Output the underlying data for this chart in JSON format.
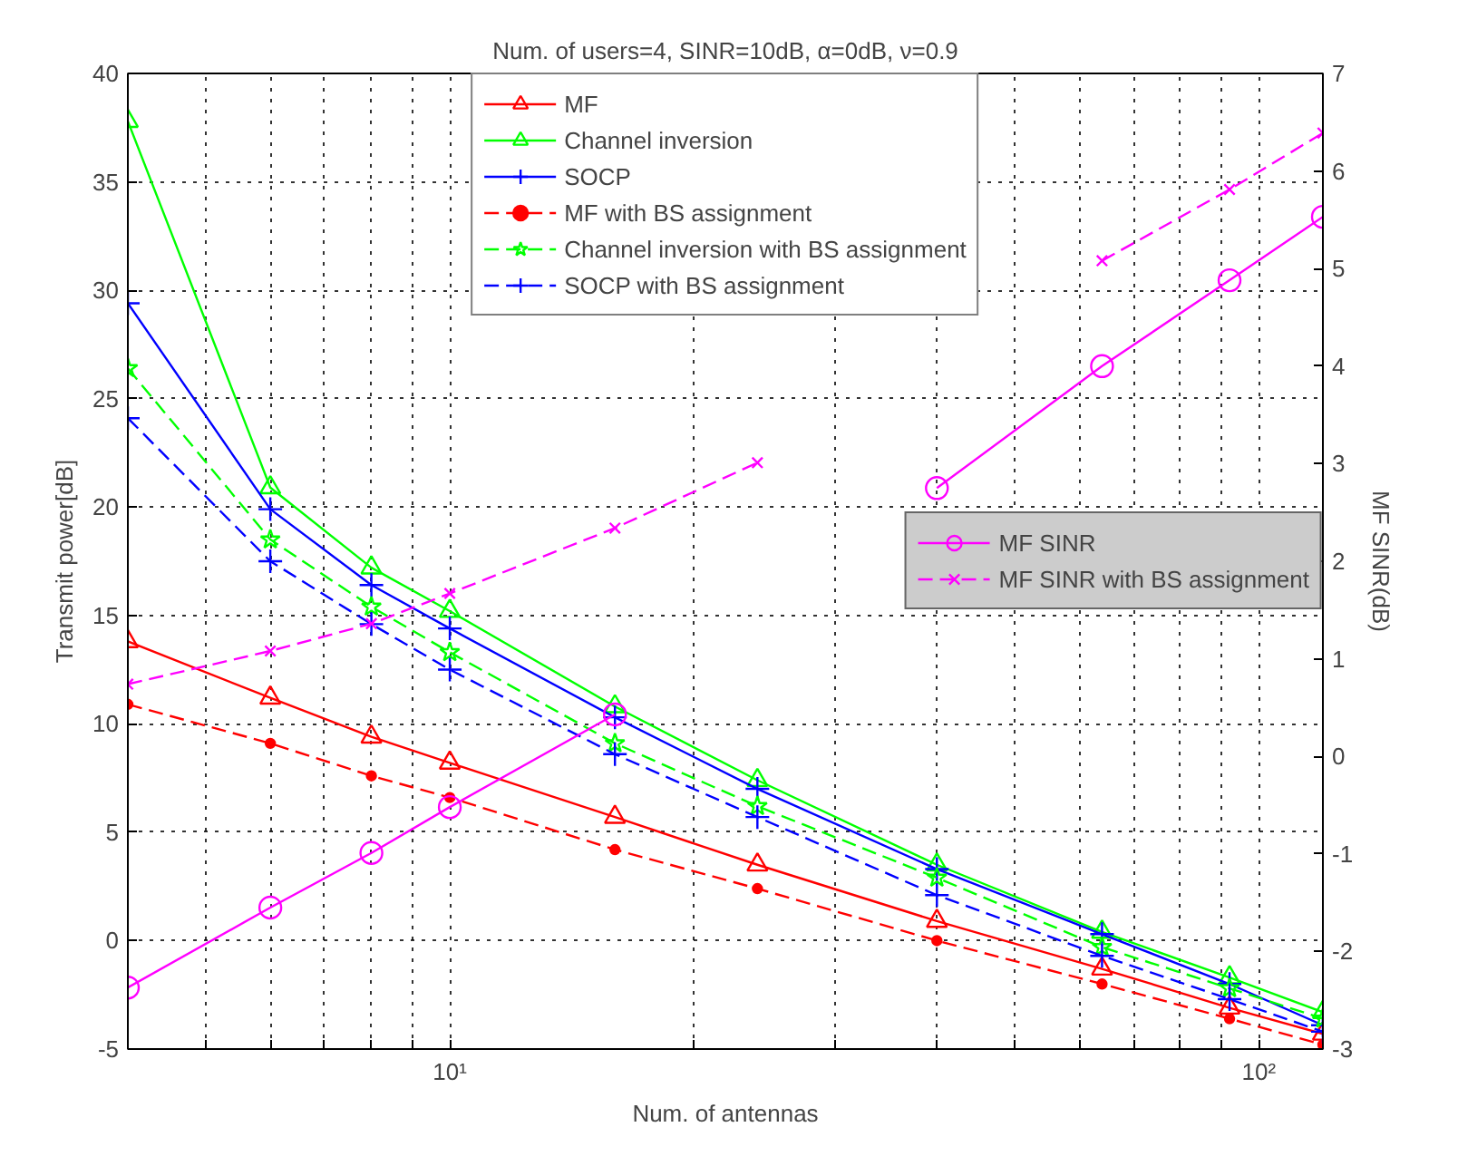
{
  "chart_data": {
    "type": "line",
    "title": "Num. of users=4, SINR=10dB, α=0dB, ν=0.9",
    "xlabel": "Num. of antennas",
    "ylabel": "Transmit power[dB]",
    "y2label": "MF SINR(dB)",
    "x": [
      4,
      6,
      8,
      10,
      16,
      24,
      40,
      64,
      92,
      120
    ],
    "log": "x",
    "xlim": [
      4,
      120
    ],
    "xticks": [
      {
        "value": 5,
        "label": null
      },
      {
        "value": 6,
        "label": null
      },
      {
        "value": 7,
        "label": null
      },
      {
        "value": 8,
        "label": null
      },
      {
        "value": 9,
        "label": null
      },
      {
        "value": 10,
        "label": "10¹"
      },
      {
        "value": 20,
        "label": null
      },
      {
        "value": 30,
        "label": null
      },
      {
        "value": 40,
        "label": null
      },
      {
        "value": 50,
        "label": null
      },
      {
        "value": 60,
        "label": null
      },
      {
        "value": 70,
        "label": null
      },
      {
        "value": 80,
        "label": null
      },
      {
        "value": 90,
        "label": null
      },
      {
        "value": 100,
        "label": "10²"
      }
    ],
    "ylim": [
      -5,
      40
    ],
    "yticks": [
      -5,
      0,
      5,
      10,
      15,
      20,
      25,
      30,
      35,
      40
    ],
    "y2lim": [
      -3,
      7
    ],
    "y2ticks": [
      -3,
      -2,
      -1,
      0,
      1,
      2,
      3,
      4,
      5,
      6,
      7
    ],
    "grid": true,
    "legend": "top",
    "series": [
      {
        "name": "MF",
        "color": "#ff0000",
        "marker": "triangle",
        "line_style": "solid",
        "values": [
          13.8,
          11.2,
          9.4,
          8.2,
          5.7,
          3.5,
          0.9,
          -1.3,
          -3.1,
          -4.3
        ]
      },
      {
        "name": "Channel inversion",
        "color": "#00ff00",
        "marker": "triangle",
        "line_style": "solid",
        "values": [
          37.8,
          20.9,
          17.2,
          15.2,
          10.8,
          7.4,
          3.5,
          0.4,
          -1.7,
          -3.3
        ]
      },
      {
        "name": "SOCP",
        "color": "#0000ff",
        "marker": "cross",
        "line_style": "solid",
        "values": [
          29.4,
          19.9,
          16.4,
          14.4,
          10.3,
          7.0,
          3.3,
          0.3,
          -2.0,
          -3.9
        ]
      },
      {
        "name": "MF with BS assignment",
        "color": "#ff0000",
        "marker": "dot",
        "line_style": "dashed",
        "values": [
          10.9,
          9.1,
          7.6,
          6.6,
          4.2,
          2.4,
          0.0,
          -2.0,
          -3.6,
          -4.8
        ]
      },
      {
        "name": "Channel inversion with BS assignment",
        "color": "#00ff00",
        "marker": "star",
        "line_style": "dashed",
        "values": [
          26.4,
          18.5,
          15.4,
          13.3,
          9.1,
          6.2,
          2.9,
          -0.3,
          -2.2,
          -3.6
        ]
      },
      {
        "name": "SOCP with BS assignment",
        "color": "#0000ff",
        "marker": "cross",
        "line_style": "dashed",
        "values": [
          24.1,
          17.5,
          14.6,
          12.5,
          8.6,
          5.7,
          2.1,
          -0.7,
          -2.7,
          -4.2
        ]
      },
      {
        "name": "MF SINR",
        "color": "#ff00ff",
        "marker": "circle",
        "line_style": "solid",
        "axis": "y2",
        "values": [
          -2.37,
          -1.55,
          -0.99,
          -0.52,
          0.43,
          null,
          2.75,
          4.0,
          4.88,
          5.53
        ]
      },
      {
        "name": "MF SINR with BS assignment",
        "color": "#ff00ff",
        "marker": "x",
        "line_style": "dashed",
        "axis": "y2",
        "values": [
          0.74,
          1.08,
          1.36,
          1.67,
          2.34,
          3.01,
          null,
          5.08,
          5.81,
          6.39
        ]
      }
    ]
  }
}
